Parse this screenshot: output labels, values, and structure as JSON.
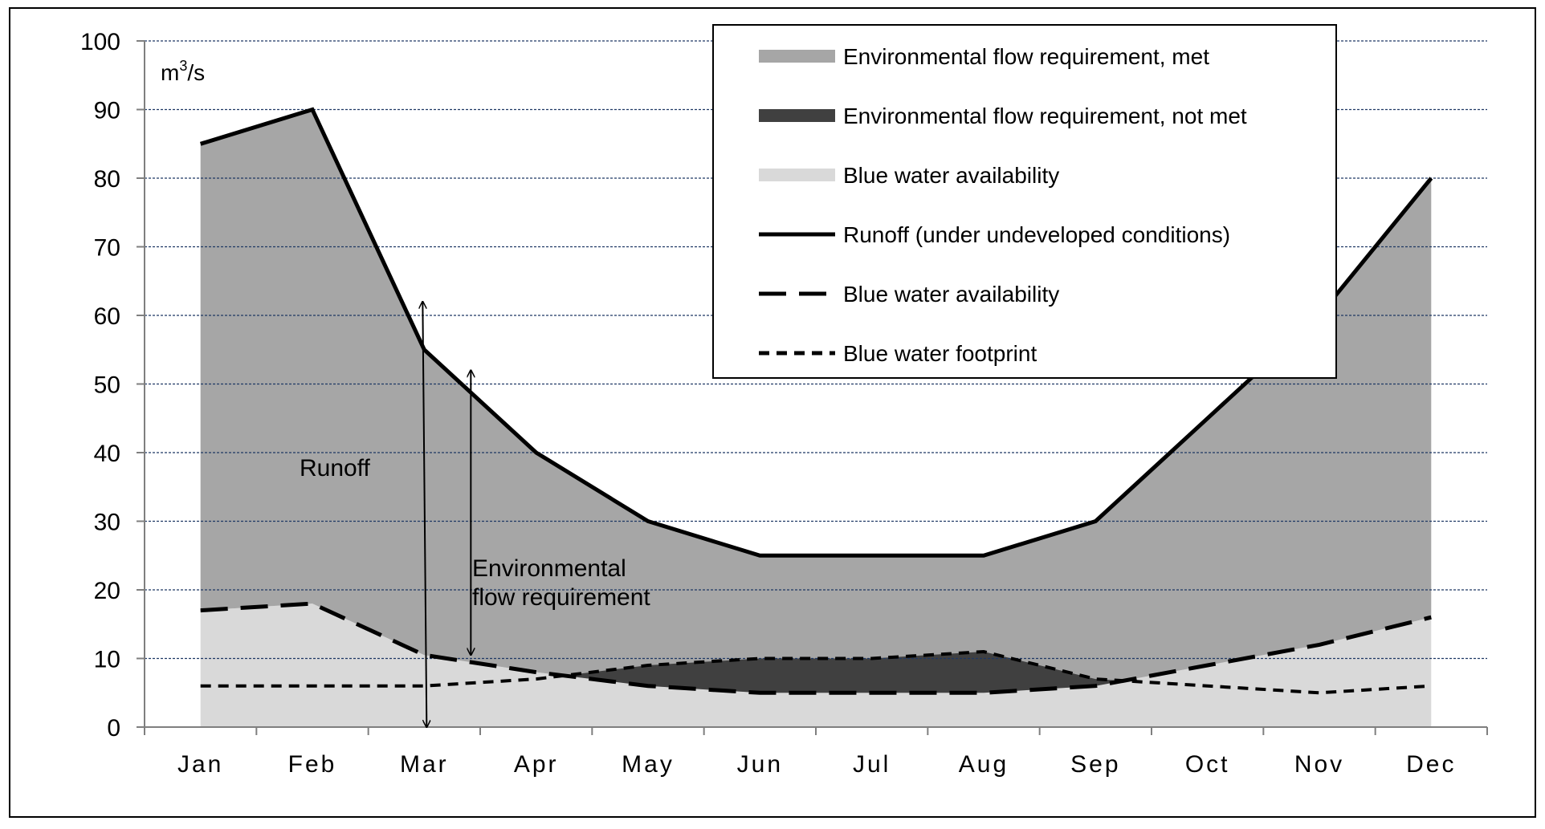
{
  "chart_data": {
    "type": "area",
    "unit_label": {
      "base": "m",
      "sup": "3",
      "suffix": "/s"
    },
    "categories": [
      "Jan",
      "Feb",
      "Mar",
      "Apr",
      "May",
      "Jun",
      "Jul",
      "Aug",
      "Sep",
      "Oct",
      "Nov",
      "Dec"
    ],
    "ylim": [
      0,
      100
    ],
    "yticks": [
      0,
      10,
      20,
      30,
      40,
      50,
      60,
      70,
      80,
      90,
      100
    ],
    "grid": true,
    "legend_position": "top-right",
    "series": [
      {
        "name": "Runoff (under undeveloped conditions)",
        "values": [
          85,
          90,
          55,
          40,
          30,
          25,
          25,
          25,
          30,
          45,
          60,
          80
        ]
      },
      {
        "name": "Blue water availability",
        "values": [
          17,
          18,
          10.5,
          8,
          6,
          5,
          5,
          5,
          6,
          9,
          12,
          16
        ]
      },
      {
        "name": "Blue water footprint",
        "values": [
          6,
          6,
          6,
          7,
          9,
          10,
          10,
          11,
          7,
          6,
          5,
          6
        ]
      }
    ],
    "legend": [
      {
        "label": "Environmental flow requirement, met",
        "kind": "fill",
        "color": "#a6a6a6"
      },
      {
        "label": "Environmental flow requirement, not met",
        "kind": "fill",
        "color": "#404040"
      },
      {
        "label": "Blue water availability",
        "kind": "fill",
        "color": "#d9d9d9"
      },
      {
        "label": "Runoff (under undeveloped conditions)",
        "kind": "solid",
        "color": "#000000"
      },
      {
        "label": "Blue water availability",
        "kind": "dashed",
        "color": "#000000"
      },
      {
        "label": "Blue water footprint",
        "kind": "dotted",
        "color": "#000000"
      }
    ],
    "annotations": {
      "runoff": {
        "label": "Runoff",
        "month": "Mar",
        "from": 0,
        "to": 62
      },
      "efr": {
        "lines": [
          "Environmental",
          "flow requirement"
        ],
        "month": "Mar",
        "from": 10.5,
        "to": 52
      }
    },
    "colors": {
      "efr_met": "#a6a6a6",
      "efr_not_met": "#404040",
      "blue_water": "#d9d9d9",
      "grid": "#1f3864"
    }
  }
}
